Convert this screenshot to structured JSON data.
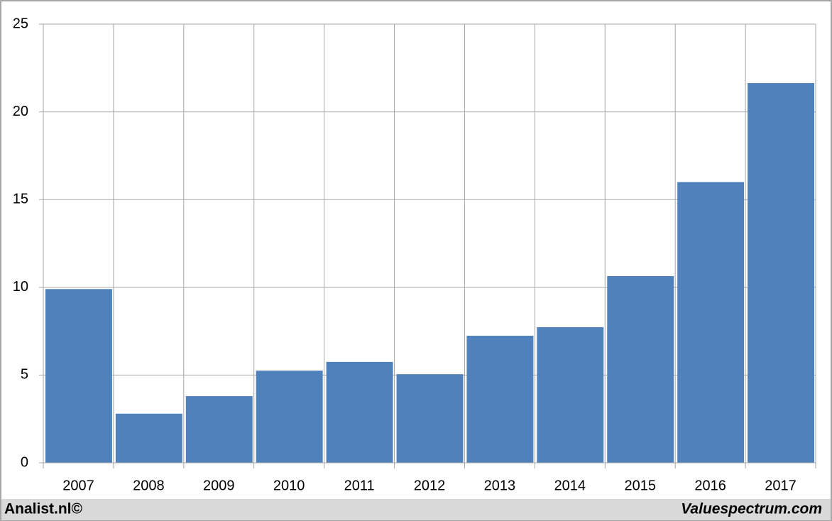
{
  "chart_data": {
    "type": "bar",
    "categories": [
      "2007",
      "2008",
      "2009",
      "2010",
      "2011",
      "2012",
      "2013",
      "2014",
      "2015",
      "2016",
      "2017"
    ],
    "values": [
      9.9,
      2.8,
      3.8,
      5.25,
      5.75,
      5.05,
      7.24,
      7.73,
      10.64,
      16,
      21.64
    ],
    "color": "#4f81bd",
    "ylim": [
      0,
      25
    ],
    "yticks": [
      0,
      5,
      10,
      15,
      20,
      25
    ],
    "grid": true
  },
  "footer": {
    "left": "Analist.nl©",
    "right": "Valuespectrum.com"
  }
}
